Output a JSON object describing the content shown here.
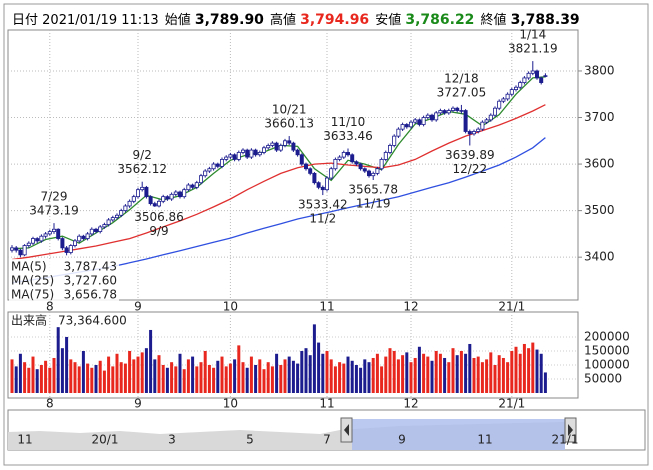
{
  "header": [
    {
      "label": "日付",
      "value": "2021/01/19 11:13"
    },
    {
      "label": "始値",
      "value": "3,789.90"
    },
    {
      "label": "高値",
      "value": "3,794.96",
      "color": "#e8281e"
    },
    {
      "label": "安値",
      "value": "3,786.22",
      "color": "#1a8a1a"
    },
    {
      "label": "終値",
      "value": "3,788.39"
    }
  ],
  "chart_data": {
    "type": "candlestick",
    "ylim": [
      3308,
      3888
    ],
    "yticks": [
      3400,
      3500,
      3600,
      3700,
      3800
    ],
    "xticks": [
      {
        "value": 9,
        "label": "8"
      },
      {
        "value": 30,
        "label": "9"
      },
      {
        "value": 52,
        "label": "10"
      },
      {
        "value": 75,
        "label": "11"
      },
      {
        "value": 95,
        "label": "12"
      },
      {
        "value": 119,
        "label": "21/1"
      }
    ],
    "grid": true,
    "candle_color": "#1c1c8f",
    "ohlc": [
      [
        3415,
        3426,
        3410,
        3420
      ],
      [
        3420,
        3424,
        3410,
        3415
      ],
      [
        3415,
        3418,
        3400,
        3405
      ],
      [
        3405,
        3428,
        3402,
        3425
      ],
      [
        3425,
        3434,
        3420,
        3430
      ],
      [
        3430,
        3444,
        3426,
        3440
      ],
      [
        3440,
        3443,
        3430,
        3435
      ],
      [
        3435,
        3449,
        3431,
        3445
      ],
      [
        3445,
        3454,
        3440,
        3450
      ],
      [
        3450,
        3459,
        3446,
        3455
      ],
      [
        3455,
        3473.19,
        3450,
        3460
      ],
      [
        3460,
        3462,
        3436,
        3440
      ],
      [
        3440,
        3443,
        3415,
        3420
      ],
      [
        3420,
        3424,
        3404,
        3410
      ],
      [
        3410,
        3428,
        3406,
        3425
      ],
      [
        3425,
        3439,
        3421,
        3435
      ],
      [
        3435,
        3449,
        3431,
        3445
      ],
      [
        3445,
        3448,
        3436,
        3440
      ],
      [
        3440,
        3454,
        3436,
        3450
      ],
      [
        3450,
        3464,
        3446,
        3460
      ],
      [
        3460,
        3463,
        3451,
        3455
      ],
      [
        3455,
        3469,
        3451,
        3465
      ],
      [
        3465,
        3474,
        3461,
        3470
      ],
      [
        3470,
        3484,
        3466,
        3480
      ],
      [
        3480,
        3489,
        3476,
        3485
      ],
      [
        3485,
        3494,
        3481,
        3490
      ],
      [
        3490,
        3504,
        3486,
        3500
      ],
      [
        3500,
        3514,
        3496,
        3510
      ],
      [
        3510,
        3524,
        3506,
        3520
      ],
      [
        3520,
        3534,
        3516,
        3530
      ],
      [
        3530,
        3549,
        3526,
        3545
      ],
      [
        3545,
        3562.12,
        3541,
        3550
      ],
      [
        3550,
        3553,
        3526,
        3530
      ],
      [
        3530,
        3533,
        3511,
        3515
      ],
      [
        3515,
        3519,
        3508,
        3510
      ],
      [
        3510,
        3524,
        3506.86,
        3520
      ],
      [
        3520,
        3534,
        3516,
        3530
      ],
      [
        3530,
        3533,
        3521,
        3525
      ],
      [
        3525,
        3539,
        3521,
        3535
      ],
      [
        3535,
        3544,
        3531,
        3540
      ],
      [
        3540,
        3543,
        3526,
        3530
      ],
      [
        3530,
        3549,
        3526,
        3545
      ],
      [
        3545,
        3559,
        3541,
        3555
      ],
      [
        3555,
        3558,
        3546,
        3550
      ],
      [
        3550,
        3564,
        3546,
        3560
      ],
      [
        3560,
        3579,
        3556,
        3575
      ],
      [
        3575,
        3589,
        3571,
        3585
      ],
      [
        3585,
        3594,
        3581,
        3590
      ],
      [
        3590,
        3604,
        3586,
        3600
      ],
      [
        3600,
        3603,
        3591,
        3595
      ],
      [
        3595,
        3614,
        3591,
        3610
      ],
      [
        3610,
        3619,
        3606,
        3615
      ],
      [
        3615,
        3624,
        3611,
        3620
      ],
      [
        3620,
        3623,
        3606,
        3610
      ],
      [
        3610,
        3629,
        3606,
        3625
      ],
      [
        3625,
        3634,
        3621,
        3630
      ],
      [
        3630,
        3633,
        3611,
        3615
      ],
      [
        3615,
        3634,
        3611,
        3630
      ],
      [
        3630,
        3633,
        3616,
        3620
      ],
      [
        3620,
        3629,
        3616,
        3625
      ],
      [
        3625,
        3639,
        3621,
        3635
      ],
      [
        3635,
        3644,
        3631,
        3640
      ],
      [
        3640,
        3649,
        3636,
        3645
      ],
      [
        3645,
        3648,
        3626,
        3630
      ],
      [
        3630,
        3644,
        3626,
        3640
      ],
      [
        3640,
        3654,
        3636,
        3650
      ],
      [
        3650,
        3660.13,
        3641,
        3645
      ],
      [
        3645,
        3648,
        3626,
        3630
      ],
      [
        3630,
        3633,
        3616,
        3620
      ],
      [
        3620,
        3623,
        3596,
        3600
      ],
      [
        3600,
        3603,
        3586,
        3590
      ],
      [
        3590,
        3593,
        3576,
        3580
      ],
      [
        3580,
        3583,
        3556,
        3560
      ],
      [
        3560,
        3563,
        3546,
        3550
      ],
      [
        3550,
        3554,
        3533.42,
        3545
      ],
      [
        3545,
        3574,
        3541,
        3570
      ],
      [
        3570,
        3594,
        3566,
        3590
      ],
      [
        3590,
        3614,
        3586,
        3610
      ],
      [
        3610,
        3619,
        3606,
        3615
      ],
      [
        3615,
        3629,
        3611,
        3625
      ],
      [
        3625,
        3633.46,
        3616,
        3620
      ],
      [
        3620,
        3623,
        3601,
        3605
      ],
      [
        3605,
        3608,
        3596,
        3600
      ],
      [
        3600,
        3603,
        3586,
        3590
      ],
      [
        3590,
        3593,
        3581,
        3585
      ],
      [
        3585,
        3588,
        3571,
        3575
      ],
      [
        3575,
        3584,
        3565.78,
        3580
      ],
      [
        3580,
        3594,
        3576,
        3590
      ],
      [
        3590,
        3614,
        3586,
        3610
      ],
      [
        3610,
        3629,
        3606,
        3625
      ],
      [
        3625,
        3644,
        3621,
        3640
      ],
      [
        3640,
        3664,
        3636,
        3660
      ],
      [
        3660,
        3679,
        3656,
        3675
      ],
      [
        3675,
        3689,
        3671,
        3685
      ],
      [
        3685,
        3688,
        3676,
        3680
      ],
      [
        3680,
        3694,
        3676,
        3690
      ],
      [
        3690,
        3699,
        3686,
        3695
      ],
      [
        3695,
        3698,
        3681,
        3685
      ],
      [
        3685,
        3704,
        3681,
        3700
      ],
      [
        3700,
        3709,
        3696,
        3705
      ],
      [
        3705,
        3708,
        3691,
        3695
      ],
      [
        3695,
        3714,
        3691,
        3710
      ],
      [
        3710,
        3719,
        3706,
        3715
      ],
      [
        3715,
        3718,
        3706,
        3710
      ],
      [
        3710,
        3719,
        3706,
        3715
      ],
      [
        3715,
        3724,
        3711,
        3720
      ],
      [
        3720,
        3723,
        3711,
        3715
      ],
      [
        3715,
        3727.05,
        3708,
        3715
      ],
      [
        3715,
        3718,
        3666,
        3670
      ],
      [
        3670,
        3674,
        3639.89,
        3665
      ],
      [
        3665,
        3674,
        3661,
        3670
      ],
      [
        3670,
        3679,
        3666,
        3675
      ],
      [
        3675,
        3694,
        3671,
        3690
      ],
      [
        3690,
        3699,
        3686,
        3695
      ],
      [
        3695,
        3709,
        3691,
        3705
      ],
      [
        3705,
        3724,
        3701,
        3720
      ],
      [
        3720,
        3739,
        3716,
        3735
      ],
      [
        3735,
        3744,
        3731,
        3740
      ],
      [
        3740,
        3754,
        3736,
        3750
      ],
      [
        3750,
        3764,
        3746,
        3760
      ],
      [
        3760,
        3769,
        3756,
        3765
      ],
      [
        3765,
        3779,
        3761,
        3775
      ],
      [
        3775,
        3789,
        3771,
        3785
      ],
      [
        3785,
        3799,
        3781,
        3795
      ],
      [
        3795,
        3821.19,
        3791,
        3800
      ],
      [
        3800,
        3803,
        3781,
        3785
      ],
      [
        3785,
        3788,
        3771,
        3775
      ],
      [
        3789.9,
        3794.96,
        3786.22,
        3788.39
      ]
    ],
    "annotations": [
      {
        "date": "7/29",
        "value": 3473.19
      },
      {
        "date": "9/2",
        "value": 3562.12
      },
      {
        "date": "9/9",
        "value": 3506.86
      },
      {
        "date": "10/21",
        "value": 3660.13
      },
      {
        "date": "11/2",
        "value": 3533.42
      },
      {
        "date": "11/10",
        "value": 3633.46
      },
      {
        "date": "11/19",
        "value": 3565.78
      },
      {
        "date": "12/18",
        "value": 3727.05
      },
      {
        "date": "12/22",
        "value": 3639.89
      },
      {
        "date": "1/14",
        "value": 3821.19
      }
    ],
    "ma": [
      {
        "name": "MA(5)",
        "legend_value": "3,787.43",
        "color": "#2e8b2e",
        "x": [
          0,
          4,
          8,
          12,
          16,
          20,
          24,
          28,
          32,
          36,
          40,
          44,
          48,
          52,
          56,
          60,
          64,
          68,
          72,
          76,
          80,
          84,
          88,
          92,
          96,
          100,
          104,
          108,
          112,
          116,
          120,
          124,
          127
        ],
        "values": [
          3418,
          3420,
          3438,
          3445,
          3430,
          3452,
          3474,
          3502,
          3533,
          3523,
          3532,
          3550,
          3580,
          3608,
          3620,
          3626,
          3640,
          3638,
          3590,
          3565,
          3608,
          3600,
          3588,
          3642,
          3686,
          3698,
          3713,
          3707,
          3682,
          3706,
          3750,
          3785,
          3787.43
        ]
      },
      {
        "name": "MA(25)",
        "legend_value": "3,727.60",
        "color": "#e03030",
        "x": [
          0,
          4,
          8,
          12,
          16,
          20,
          24,
          28,
          32,
          36,
          40,
          44,
          48,
          52,
          56,
          60,
          64,
          68,
          72,
          76,
          80,
          84,
          88,
          92,
          96,
          100,
          104,
          108,
          112,
          116,
          120,
          124,
          127
        ],
        "values": [
          3395,
          3400,
          3406,
          3412,
          3418,
          3424,
          3432,
          3440,
          3452,
          3465,
          3478,
          3492,
          3508,
          3525,
          3545,
          3563,
          3580,
          3592,
          3600,
          3602,
          3598,
          3595,
          3592,
          3598,
          3610,
          3628,
          3645,
          3660,
          3672,
          3684,
          3698,
          3714,
          3727.6
        ]
      },
      {
        "name": "MA(75)",
        "legend_value": "3,656.78",
        "color": "#3050e0",
        "x": [
          0,
          4,
          8,
          12,
          16,
          20,
          24,
          28,
          32,
          36,
          40,
          44,
          48,
          52,
          56,
          60,
          64,
          68,
          72,
          76,
          80,
          84,
          88,
          92,
          96,
          100,
          104,
          108,
          112,
          116,
          120,
          124,
          127
        ],
        "values": [
          3345,
          3350,
          3356,
          3362,
          3368,
          3374,
          3380,
          3388,
          3396,
          3405,
          3414,
          3423,
          3432,
          3441,
          3452,
          3462,
          3472,
          3482,
          3490,
          3498,
          3506,
          3514,
          3522,
          3530,
          3540,
          3550,
          3560,
          3572,
          3585,
          3598,
          3615,
          3635,
          3656.78
        ]
      }
    ],
    "volume": {
      "label": "出来高",
      "value_label": "73,364.600",
      "ylim": [
        0,
        282000
      ],
      "yticks": [
        50000,
        100000,
        150000,
        200000
      ],
      "up_color": "#e8281e",
      "down_color": "#1c1c8f",
      "values": [
        120000,
        95000,
        140000,
        110000,
        90000,
        130000,
        85000,
        100000,
        115000,
        90000,
        125000,
        235000,
        160000,
        200000,
        120000,
        110000,
        95000,
        150000,
        105000,
        90000,
        100000,
        115000,
        80000,
        130000,
        95000,
        140000,
        110000,
        105000,
        150000,
        120000,
        130000,
        145000,
        160000,
        225000,
        120000,
        135000,
        100000,
        90000,
        110000,
        95000,
        140000,
        85000,
        120000,
        130000,
        95000,
        110000,
        150000,
        100000,
        90000,
        115000,
        130000,
        95000,
        105000,
        120000,
        170000,
        110000,
        90000,
        130000,
        100000,
        120000,
        85000,
        110000,
        95000,
        140000,
        100000,
        120000,
        130000,
        115000,
        105000,
        150000,
        160000,
        135000,
        245000,
        180000,
        140000,
        150000,
        120000,
        95000,
        110000,
        105000,
        130000,
        115000,
        100000,
        90000,
        120000,
        110000,
        125000,
        140000,
        95000,
        130000,
        160000,
        150000,
        120000,
        135000,
        145000,
        110000,
        125000,
        165000,
        140000,
        130000,
        115000,
        150000,
        140000,
        125000,
        110000,
        160000,
        135000,
        150000,
        140000,
        175000,
        125000,
        130000,
        110000,
        120000,
        145000,
        100000,
        135000,
        125000,
        110000,
        150000,
        165000,
        140000,
        175000,
        160000,
        180000,
        155000,
        140000,
        73364.6
      ]
    }
  },
  "navigator": {
    "labels": [
      "11",
      "20/1",
      "3",
      "5",
      "7",
      "9",
      "11",
      "21/1"
    ]
  }
}
